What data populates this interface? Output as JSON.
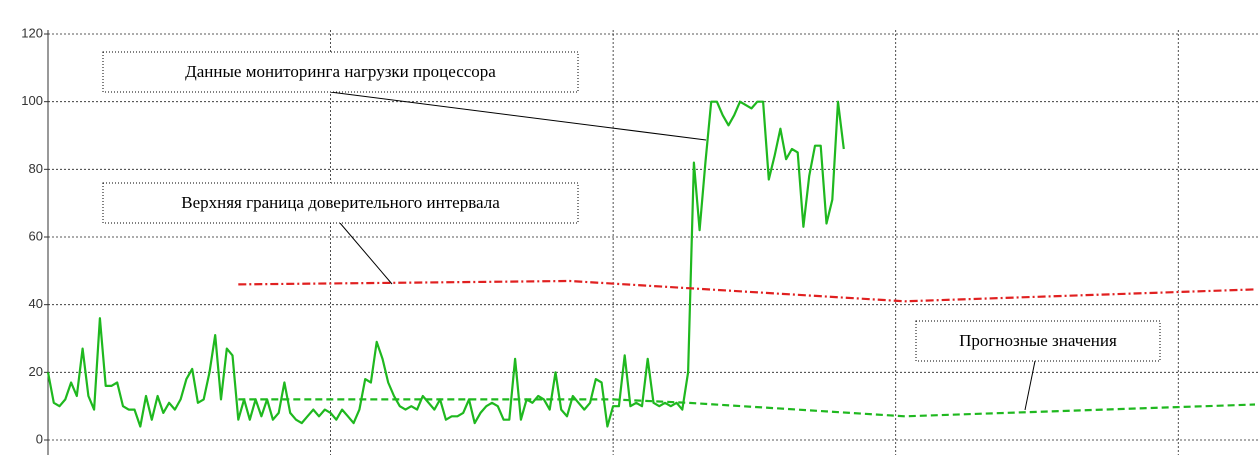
{
  "chart_data": {
    "type": "line",
    "ylim": [
      0,
      120
    ],
    "yticks": [
      0,
      20,
      40,
      60,
      80,
      100,
      120
    ],
    "xlim": [
      0,
      210
    ],
    "xticks": [
      0,
      49,
      98,
      147,
      196
    ],
    "grid": true,
    "series": [
      {
        "color": "#1fb81f",
        "style": "solid",
        "values": [
          20,
          11,
          10,
          12,
          17,
          13,
          27,
          13,
          9,
          36,
          16,
          16,
          17,
          10,
          9,
          9,
          4,
          13,
          6,
          13,
          8,
          11,
          9,
          12,
          18,
          21,
          11,
          12,
          20,
          31,
          12,
          27,
          25,
          6,
          12,
          6,
          12,
          7,
          12,
          6,
          8,
          17,
          8,
          6,
          5,
          7,
          9,
          7,
          9,
          8,
          6,
          9,
          7,
          5,
          9,
          18,
          17,
          29,
          24,
          17,
          13,
          10,
          9,
          10,
          9,
          13,
          11,
          9,
          12,
          6,
          7,
          7,
          8,
          12,
          5,
          8,
          10,
          11,
          10,
          6,
          6,
          24,
          6,
          12,
          11,
          13,
          12,
          9,
          20,
          9,
          7,
          13,
          11,
          9,
          11,
          18,
          17,
          4,
          10,
          10,
          25,
          10,
          11,
          10,
          24,
          11,
          10,
          11,
          10,
          11,
          9,
          20,
          82,
          62,
          82,
          100,
          100,
          96,
          93,
          96,
          100,
          99,
          98,
          100,
          100,
          77,
          84,
          92,
          83,
          86,
          85,
          63,
          78,
          87,
          87,
          64,
          71,
          100,
          86
        ]
      },
      {
        "color": "#e02020",
        "style": "dashdot",
        "x": [
          33,
          90.5,
          148.6,
          209.3
        ],
        "values": [
          46,
          47,
          41,
          44.5
        ]
      },
      {
        "color": "#1fb81f",
        "style": "dashed",
        "x": [
          33,
          98,
          111,
          148.6,
          209.3
        ],
        "values": [
          12,
          12,
          11,
          7,
          10.5
        ]
      }
    ],
    "annotations": [
      {
        "text": "Данные мониторинга нагрузки процессора"
      },
      {
        "text": "Верхняя граница доверительного интервала"
      },
      {
        "text": "Прогнозные значения"
      }
    ]
  }
}
